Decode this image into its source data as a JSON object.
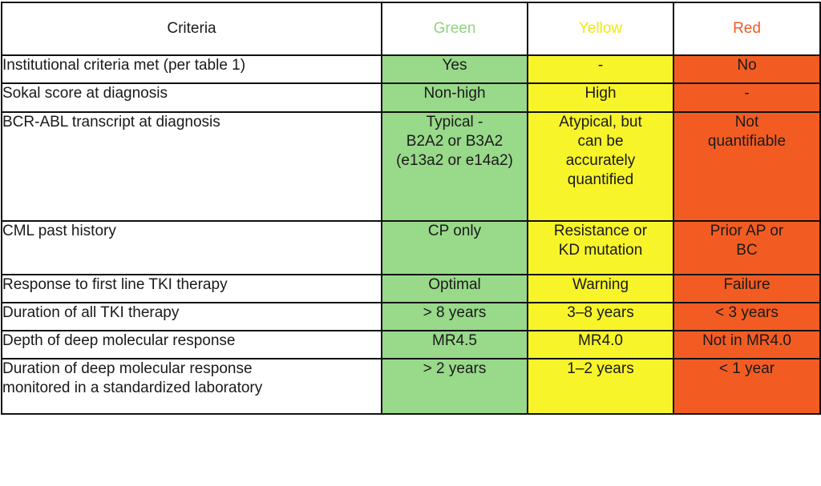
{
  "header": {
    "criteria": "Criteria",
    "green": "Green",
    "yellow": "Yellow",
    "red": "Red"
  },
  "colors": {
    "green": "#98d98a",
    "yellow": "#f7f42a",
    "red": "#f25c23"
  },
  "rows": [
    {
      "criterion": "Institutional criteria met (per table 1)",
      "green": "Yes",
      "yellow": "-",
      "red": "No"
    },
    {
      "criterion": "Sokal score at diagnosis",
      "green": "Non-high",
      "yellow": "High",
      "red": "-"
    },
    {
      "criterion": "BCR-ABL transcript at diagnosis",
      "green": "Typical -\nB2A2 or B3A2\n(e13a2 or e14a2)",
      "yellow": "Atypical, but\ncan be\naccurately\nquantified",
      "red": "Not\nquantifiable"
    },
    {
      "criterion": "CML past history",
      "green": "CP only",
      "yellow": "Resistance or\nKD mutation",
      "red": "Prior AP or\nBC"
    },
    {
      "criterion": "Response to first line TKI therapy",
      "green": "Optimal",
      "yellow": "Warning",
      "red": "Failure"
    },
    {
      "criterion": "Duration of all TKI therapy",
      "green": "> 8 years",
      "yellow": "3–8 years",
      "red": "< 3 years"
    },
    {
      "criterion": "Depth of deep molecular response",
      "green": "MR4.5",
      "yellow": "MR4.0",
      "red": "Not in MR4.0"
    },
    {
      "criterion": "Duration of deep molecular response\nmonitored in a standardized laboratory",
      "green": "> 2 years",
      "yellow": "1–2 years",
      "red": "< 1 year"
    }
  ]
}
